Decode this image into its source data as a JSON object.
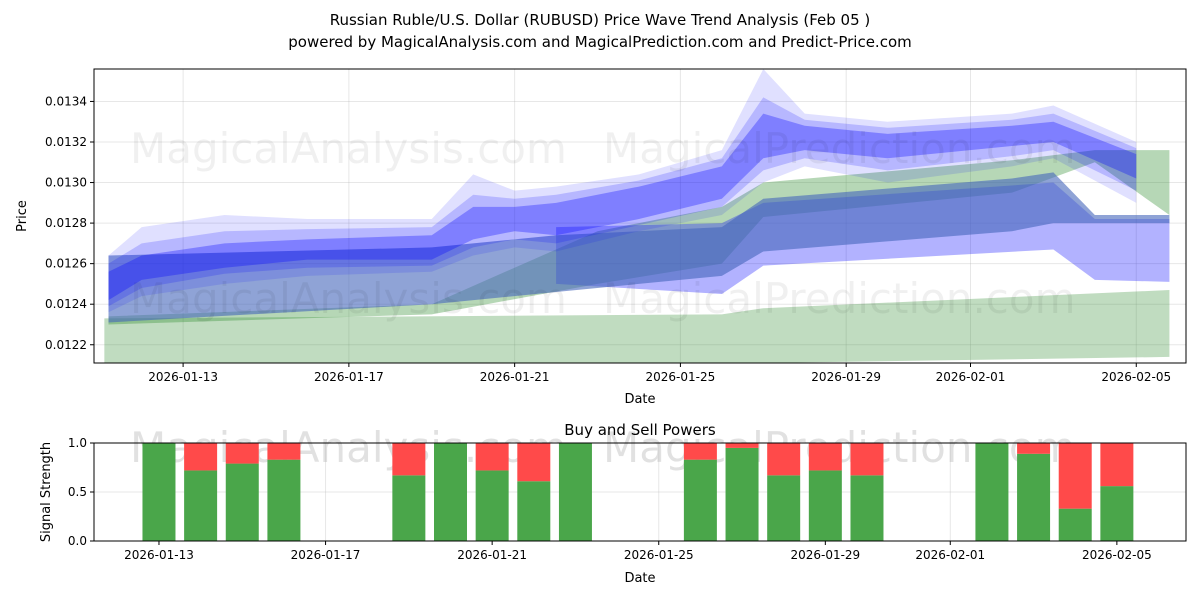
{
  "title_line1": "Russian Ruble/U.S. Dollar (RUBUSD) Price Wave Trend Analysis (Feb 05 )",
  "title_line2": "powered by MagicalAnalysis.com and MagicalPrediction.com and Predict-Price.com",
  "watermarks": [
    "MagicalAnalysis.com",
    "MagicalPrediction.com"
  ],
  "colors": {
    "wave": "#0000ff",
    "green": "#2e8b2e",
    "buy": "#4aa64a",
    "sell": "#ff4a4a",
    "core": "#4466bb"
  },
  "chart_data": [
    {
      "type": "area",
      "title": "",
      "xlabel": "Date",
      "ylabel": "Price",
      "x_unit": "days since 2026-01-11",
      "xlim": [
        -0.15,
        26.2
      ],
      "ylim": [
        0.01211,
        0.01356
      ],
      "xticks": [
        {
          "d": 2,
          "label": "2026-01-13"
        },
        {
          "d": 6,
          "label": "2026-01-17"
        },
        {
          "d": 10,
          "label": "2026-01-21"
        },
        {
          "d": 14,
          "label": "2026-01-25"
        },
        {
          "d": 18,
          "label": "2026-01-29"
        },
        {
          "d": 21,
          "label": "2026-02-01"
        },
        {
          "d": 25,
          "label": "2026-02-05"
        }
      ],
      "yticks": [
        {
          "v": 0.0122,
          "label": "0.0122"
        },
        {
          "v": 0.0124,
          "label": "0.0124"
        },
        {
          "v": 0.0126,
          "label": "0.0126"
        },
        {
          "v": 0.0128,
          "label": "0.0128"
        },
        {
          "v": 0.013,
          "label": "0.0130"
        },
        {
          "v": 0.0132,
          "label": "0.0132"
        },
        {
          "v": 0.0134,
          "label": "0.0134"
        }
      ],
      "bands": [
        {
          "name": "green-lower-band",
          "color": "green",
          "opacity": 0.3,
          "points": [
            [
              0.1,
              0.01211,
              0.01233
            ],
            [
              15,
              0.01211,
              0.01235
            ],
            [
              16,
              0.01211,
              0.01238
            ],
            [
              25.8,
              0.01214,
              0.01247
            ]
          ]
        },
        {
          "name": "green-upper-band",
          "color": "green",
          "opacity": 0.35,
          "points": [
            [
              0.2,
              0.0123,
              0.01234
            ],
            [
              8,
              0.01235,
              0.0124
            ],
            [
              12,
              0.0125,
              0.01276
            ],
            [
              15,
              0.0126,
              0.01288
            ],
            [
              16,
              0.01283,
              0.013
            ],
            [
              22,
              0.01295,
              0.01311
            ],
            [
              24,
              0.0131,
              0.01316
            ],
            [
              25.8,
              0.01284,
              0.01316
            ]
          ]
        },
        {
          "name": "wave-lower-band",
          "color": "wave",
          "opacity": 0.3,
          "points": [
            [
              11,
              0.0125,
              0.01278
            ],
            [
              15,
              0.01245,
              0.0128
            ],
            [
              16,
              0.01259,
              0.0129
            ],
            [
              23,
              0.01267,
              0.013
            ],
            [
              24,
              0.01252,
              0.01282
            ],
            [
              25.8,
              0.01251,
              0.01282
            ]
          ]
        },
        {
          "name": "core-band",
          "color": "core",
          "opacity": 0.6,
          "points": [
            [
              0.2,
              0.01231,
              0.01264
            ],
            [
              8,
              0.0124,
              0.01268
            ],
            [
              11,
              0.01246,
              0.01274
            ],
            [
              15,
              0.01254,
              0.01278
            ],
            [
              16,
              0.01266,
              0.01292
            ],
            [
              22,
              0.01276,
              0.01302
            ],
            [
              23,
              0.0128,
              0.01305
            ],
            [
              24,
              0.0128,
              0.01284
            ],
            [
              25.8,
              0.0128,
              0.01284
            ]
          ]
        },
        {
          "name": "wave-outer-envelope",
          "color": "wave",
          "opacity": 0.12,
          "points": [
            [
              0.2,
              0.01236,
              0.01264
            ],
            [
              1,
              0.01244,
              0.01278
            ],
            [
              3,
              0.0125,
              0.01284
            ],
            [
              5,
              0.01254,
              0.01282
            ],
            [
              8,
              0.01256,
              0.01282
            ],
            [
              9,
              0.01264,
              0.01304
            ],
            [
              10,
              0.01268,
              0.01296
            ],
            [
              11,
              0.01266,
              0.01298
            ],
            [
              13,
              0.01276,
              0.01304
            ],
            [
              15,
              0.01284,
              0.01316
            ],
            [
              16,
              0.013,
              0.01356
            ],
            [
              17,
              0.01308,
              0.01334
            ],
            [
              19,
              0.013,
              0.0133
            ],
            [
              22,
              0.01308,
              0.01334
            ],
            [
              23,
              0.01312,
              0.01338
            ],
            [
              25,
              0.0129,
              0.0132
            ]
          ]
        },
        {
          "name": "wave-mid-envelope",
          "color": "wave",
          "opacity": 0.18,
          "points": [
            [
              0.2,
              0.01239,
              0.0126
            ],
            [
              1,
              0.01248,
              0.0127
            ],
            [
              3,
              0.01255,
              0.01276
            ],
            [
              5,
              0.01258,
              0.01277
            ],
            [
              8,
              0.01259,
              0.01278
            ],
            [
              9,
              0.01268,
              0.01294
            ],
            [
              10,
              0.01272,
              0.01292
            ],
            [
              11,
              0.0127,
              0.01294
            ],
            [
              13,
              0.01279,
              0.01301
            ],
            [
              15,
              0.01288,
              0.01312
            ],
            [
              16,
              0.01306,
              0.01342
            ],
            [
              17,
              0.01312,
              0.01331
            ],
            [
              19,
              0.01306,
              0.01327
            ],
            [
              22,
              0.01313,
              0.01331
            ],
            [
              23,
              0.01316,
              0.01334
            ],
            [
              25,
              0.01296,
              0.01317
            ]
          ]
        },
        {
          "name": "wave-core",
          "color": "wave",
          "opacity": 0.3,
          "points": [
            [
              0.2,
              0.01242,
              0.01256
            ],
            [
              1,
              0.01252,
              0.01264
            ],
            [
              3,
              0.01258,
              0.0127
            ],
            [
              5,
              0.01262,
              0.01272
            ],
            [
              8,
              0.01262,
              0.01274
            ],
            [
              9,
              0.01272,
              0.01288
            ],
            [
              10,
              0.01276,
              0.01288
            ],
            [
              11,
              0.01274,
              0.0129
            ],
            [
              13,
              0.01282,
              0.01298
            ],
            [
              15,
              0.01292,
              0.01308
            ],
            [
              16,
              0.01312,
              0.01334
            ],
            [
              17,
              0.01316,
              0.01328
            ],
            [
              19,
              0.01312,
              0.01324
            ],
            [
              22,
              0.01318,
              0.01328
            ],
            [
              23,
              0.0132,
              0.0133
            ],
            [
              25,
              0.01302,
              0.01314
            ]
          ]
        }
      ]
    },
    {
      "type": "bar",
      "title": "Buy and Sell Powers",
      "xlabel": "Date",
      "ylabel": "Signal Strength",
      "ylim": [
        0,
        1
      ],
      "xlim": [
        0.44,
        26.66
      ],
      "xticks": [
        {
          "d": 2,
          "label": "2026-01-13"
        },
        {
          "d": 6,
          "label": "2026-01-17"
        },
        {
          "d": 10,
          "label": "2026-01-21"
        },
        {
          "d": 14,
          "label": "2026-01-25"
        },
        {
          "d": 18,
          "label": "2026-01-29"
        },
        {
          "d": 21,
          "label": "2026-02-01"
        },
        {
          "d": 25,
          "label": "2026-02-05"
        }
      ],
      "yticks": [
        {
          "v": 0,
          "label": "0.0"
        },
        {
          "v": 0.5,
          "label": "0.5"
        },
        {
          "v": 1,
          "label": "1.0"
        }
      ],
      "days": [
        2,
        3,
        4,
        5,
        8,
        9,
        10,
        11,
        12,
        15,
        16,
        17,
        18,
        19,
        22,
        23,
        24,
        25
      ],
      "buy": [
        1.0,
        0.72,
        0.79,
        0.83,
        0.67,
        1.0,
        0.72,
        0.61,
        1.0,
        0.83,
        0.95,
        0.67,
        0.72,
        0.67,
        1.0,
        0.89,
        0.33,
        0.56
      ]
    }
  ]
}
